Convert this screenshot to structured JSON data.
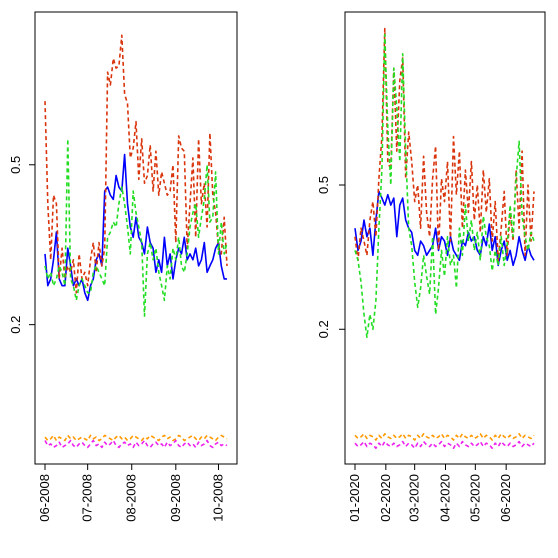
{
  "chart_data": [
    {
      "type": "line",
      "title": "",
      "xlabel": "",
      "ylabel": "",
      "y_scale": "log",
      "ylim": [
        0.09,
        1.2
      ],
      "y_ticks": [
        0.2,
        0.5
      ],
      "y_tick_labels": [
        "0.2",
        "0.5"
      ],
      "x_ticks": [
        "2008-06-01",
        "2008-07-01",
        "2008-08-01",
        "2008-09-01",
        "2008-10-01"
      ],
      "x_tick_labels": [
        "06-2008",
        "07-2008",
        "08-2008",
        "09-2008",
        "10-2008"
      ],
      "xlim": [
        "2008-06-01",
        "2008-10-07"
      ],
      "grid": false,
      "legend": "none",
      "x": [
        "2008-06-01",
        "2008-06-03",
        "2008-06-05",
        "2008-06-07",
        "2008-06-09",
        "2008-06-11",
        "2008-06-13",
        "2008-06-15",
        "2008-06-17",
        "2008-06-19",
        "2008-06-21",
        "2008-06-23",
        "2008-06-25",
        "2008-06-27",
        "2008-06-29",
        "2008-07-01",
        "2008-07-03",
        "2008-07-05",
        "2008-07-07",
        "2008-07-09",
        "2008-07-11",
        "2008-07-13",
        "2008-07-15",
        "2008-07-17",
        "2008-07-19",
        "2008-07-21",
        "2008-07-23",
        "2008-07-25",
        "2008-07-27",
        "2008-07-29",
        "2008-07-31",
        "2008-08-02",
        "2008-08-04",
        "2008-08-06",
        "2008-08-08",
        "2008-08-10",
        "2008-08-12",
        "2008-08-14",
        "2008-08-16",
        "2008-08-18",
        "2008-08-20",
        "2008-08-22",
        "2008-08-24",
        "2008-08-26",
        "2008-08-28",
        "2008-08-30",
        "2008-09-01",
        "2008-09-03",
        "2008-09-05",
        "2008-09-07",
        "2008-09-09",
        "2008-09-11",
        "2008-09-13",
        "2008-09-15",
        "2008-09-17",
        "2008-09-19",
        "2008-09-21",
        "2008-09-23",
        "2008-09-25",
        "2008-09-27",
        "2008-09-29",
        "2008-10-01",
        "2008-10-03",
        "2008-10-05",
        "2008-10-07"
      ],
      "series": [
        {
          "color": "#0000ff",
          "dash": "solid",
          "values": [
            0.3,
            0.25,
            0.26,
            0.29,
            0.34,
            0.26,
            0.25,
            0.25,
            0.31,
            0.28,
            0.25,
            0.26,
            0.25,
            0.26,
            0.24,
            0.23,
            0.25,
            0.26,
            0.29,
            0.3,
            0.28,
            0.43,
            0.44,
            0.42,
            0.41,
            0.47,
            0.44,
            0.43,
            0.53,
            0.4,
            0.35,
            0.33,
            0.37,
            0.33,
            0.32,
            0.3,
            0.35,
            0.32,
            0.31,
            0.27,
            0.29,
            0.27,
            0.33,
            0.28,
            0.3,
            0.26,
            0.29,
            0.31,
            0.3,
            0.33,
            0.29,
            0.3,
            0.29,
            0.31,
            0.28,
            0.29,
            0.32,
            0.27,
            0.28,
            0.29,
            0.31,
            0.32,
            0.28,
            0.26,
            0.26
          ]
        },
        {
          "color": "#d9340b",
          "dash": "dashed",
          "values": [
            0.72,
            0.4,
            0.29,
            0.42,
            0.4,
            0.26,
            0.31,
            0.26,
            0.28,
            0.27,
            0.29,
            0.24,
            0.3,
            0.26,
            0.27,
            0.25,
            0.29,
            0.32,
            0.27,
            0.32,
            0.28,
            0.31,
            0.85,
            0.79,
            0.92,
            0.87,
            0.88,
            1.05,
            0.75,
            0.71,
            0.52,
            0.55,
            0.64,
            0.46,
            0.58,
            0.45,
            0.47,
            0.56,
            0.43,
            0.54,
            0.42,
            0.48,
            0.45,
            0.42,
            0.43,
            0.5,
            0.32,
            0.59,
            0.55,
            0.54,
            0.31,
            0.4,
            0.52,
            0.33,
            0.58,
            0.4,
            0.45,
            0.35,
            0.6,
            0.42,
            0.38,
            0.31,
            0.3,
            0.37,
            0.28
          ]
        },
        {
          "color": "#22dd22",
          "dash": "dashed",
          "values": [
            0.28,
            0.26,
            0.27,
            0.25,
            0.26,
            0.28,
            0.27,
            0.25,
            0.58,
            0.26,
            0.25,
            0.23,
            0.25,
            0.26,
            0.25,
            0.24,
            0.24,
            0.27,
            0.28,
            0.27,
            0.26,
            0.25,
            0.33,
            0.34,
            0.36,
            0.35,
            0.4,
            0.44,
            0.4,
            0.35,
            0.3,
            0.43,
            0.38,
            0.35,
            0.32,
            0.21,
            0.3,
            0.32,
            0.29,
            0.31,
            0.27,
            0.25,
            0.23,
            0.28,
            0.26,
            0.31,
            0.29,
            0.33,
            0.28,
            0.27,
            0.3,
            0.35,
            0.38,
            0.4,
            0.33,
            0.37,
            0.41,
            0.5,
            0.36,
            0.37,
            0.48,
            0.3,
            0.36,
            0.3,
            0.32
          ]
        },
        {
          "color": "#ff9900",
          "dash": "dashed",
          "values": [
            0.105,
            0.103,
            0.104,
            0.106,
            0.103,
            0.105,
            0.104,
            0.103,
            0.106,
            0.104,
            0.105,
            0.103,
            0.104,
            0.105,
            0.104,
            0.103,
            0.106,
            0.104,
            0.105,
            0.103,
            0.104,
            0.106,
            0.105,
            0.104,
            0.103,
            0.105,
            0.106,
            0.104,
            0.105,
            0.103,
            0.104,
            0.106,
            0.105,
            0.104,
            0.103,
            0.105,
            0.104,
            0.106,
            0.105,
            0.104,
            0.103,
            0.105,
            0.106,
            0.104,
            0.105,
            0.103,
            0.104,
            0.106,
            0.105,
            0.103,
            0.104,
            0.105,
            0.106,
            0.104,
            0.103,
            0.105,
            0.104,
            0.106,
            0.105,
            0.104,
            0.103,
            0.105,
            0.106,
            0.105,
            0.104
          ]
        },
        {
          "color": "#ee22ee",
          "dash": "dashed",
          "values": [
            0.103,
            0.1,
            0.101,
            0.099,
            0.1,
            0.102,
            0.099,
            0.1,
            0.101,
            0.103,
            0.1,
            0.099,
            0.101,
            0.102,
            0.1,
            0.099,
            0.101,
            0.103,
            0.1,
            0.101,
            0.099,
            0.102,
            0.1,
            0.101,
            0.103,
            0.1,
            0.099,
            0.101,
            0.102,
            0.1,
            0.101,
            0.099,
            0.102,
            0.1,
            0.101,
            0.103,
            0.1,
            0.099,
            0.101,
            0.102,
            0.1,
            0.101,
            0.099,
            0.102,
            0.1,
            0.101,
            0.103,
            0.1,
            0.099,
            0.101,
            0.102,
            0.1,
            0.101,
            0.099,
            0.102,
            0.1,
            0.101,
            0.103,
            0.1,
            0.099,
            0.101,
            0.102,
            0.1,
            0.101,
            0.1
          ]
        }
      ]
    },
    {
      "type": "line",
      "title": "",
      "xlabel": "",
      "ylabel": "",
      "y_scale": "log",
      "ylim": [
        0.085,
        1.5
      ],
      "y_ticks": [
        0.2,
        0.5
      ],
      "y_tick_labels": [
        "0.2",
        "0.5"
      ],
      "x_ticks": [
        "2020-01-01",
        "2020-02-01",
        "2020-03-01",
        "2020-04-01",
        "2020-05-01",
        "2020-06-01"
      ],
      "x_tick_labels": [
        "01-2020",
        "02-2020",
        "03-2020",
        "04-2020",
        "05-2020",
        "06-2020"
      ],
      "xlim": [
        "2020-01-01",
        "2020-06-30"
      ],
      "grid": false,
      "legend": "none",
      "x": [
        "2020-01-01",
        "2020-01-04",
        "2020-01-07",
        "2020-01-10",
        "2020-01-13",
        "2020-01-16",
        "2020-01-19",
        "2020-01-22",
        "2020-01-25",
        "2020-01-28",
        "2020-01-31",
        "2020-02-03",
        "2020-02-06",
        "2020-02-09",
        "2020-02-12",
        "2020-02-15",
        "2020-02-18",
        "2020-02-21",
        "2020-02-24",
        "2020-02-27",
        "2020-03-01",
        "2020-03-04",
        "2020-03-07",
        "2020-03-10",
        "2020-03-13",
        "2020-03-16",
        "2020-03-19",
        "2020-03-22",
        "2020-03-25",
        "2020-03-28",
        "2020-03-31",
        "2020-04-03",
        "2020-04-06",
        "2020-04-09",
        "2020-04-12",
        "2020-04-15",
        "2020-04-18",
        "2020-04-21",
        "2020-04-24",
        "2020-04-27",
        "2020-04-30",
        "2020-05-03",
        "2020-05-06",
        "2020-05-09",
        "2020-05-12",
        "2020-05-15",
        "2020-05-18",
        "2020-05-21",
        "2020-05-24",
        "2020-05-27",
        "2020-05-30",
        "2020-06-02",
        "2020-06-05",
        "2020-06-08",
        "2020-06-11",
        "2020-06-14",
        "2020-06-17",
        "2020-06-20",
        "2020-06-23",
        "2020-06-26",
        "2020-06-29"
      ],
      "series": [
        {
          "color": "#0000ff",
          "dash": "solid",
          "values": [
            0.38,
            0.33,
            0.35,
            0.4,
            0.36,
            0.38,
            0.32,
            0.4,
            0.48,
            0.46,
            0.44,
            0.47,
            0.44,
            0.46,
            0.36,
            0.44,
            0.46,
            0.4,
            0.38,
            0.37,
            0.33,
            0.32,
            0.35,
            0.34,
            0.32,
            0.33,
            0.34,
            0.38,
            0.33,
            0.36,
            0.35,
            0.32,
            0.36,
            0.33,
            0.32,
            0.31,
            0.35,
            0.34,
            0.37,
            0.35,
            0.36,
            0.33,
            0.32,
            0.36,
            0.34,
            0.39,
            0.33,
            0.36,
            0.3,
            0.33,
            0.35,
            0.31,
            0.33,
            0.3,
            0.32,
            0.36,
            0.33,
            0.31,
            0.34,
            0.32,
            0.31
          ]
        },
        {
          "color": "#d9340b",
          "dash": "dashed",
          "values": [
            0.36,
            0.31,
            0.38,
            0.35,
            0.32,
            0.4,
            0.45,
            0.36,
            0.52,
            0.68,
            1.35,
            0.58,
            0.55,
            1.05,
            0.62,
            0.97,
            1.12,
            0.52,
            0.7,
            0.58,
            0.45,
            0.5,
            0.38,
            0.6,
            0.42,
            0.36,
            0.52,
            0.64,
            0.33,
            0.52,
            0.45,
            0.58,
            0.35,
            0.68,
            0.47,
            0.62,
            0.38,
            0.55,
            0.42,
            0.58,
            0.4,
            0.5,
            0.37,
            0.55,
            0.42,
            0.52,
            0.35,
            0.45,
            0.31,
            0.38,
            0.48,
            0.32,
            0.42,
            0.35,
            0.55,
            0.38,
            0.62,
            0.32,
            0.5,
            0.35,
            0.48
          ]
        },
        {
          "color": "#22dd22",
          "dash": "dashed",
          "values": [
            0.33,
            0.31,
            0.27,
            0.22,
            0.19,
            0.22,
            0.2,
            0.24,
            0.38,
            0.55,
            1.3,
            0.72,
            0.5,
            1.05,
            0.82,
            0.58,
            1.15,
            0.62,
            0.38,
            0.34,
            0.27,
            0.23,
            0.26,
            0.32,
            0.28,
            0.25,
            0.36,
            0.22,
            0.26,
            0.33,
            0.28,
            0.36,
            0.3,
            0.32,
            0.26,
            0.38,
            0.32,
            0.44,
            0.35,
            0.4,
            0.33,
            0.37,
            0.31,
            0.41,
            0.36,
            0.34,
            0.29,
            0.33,
            0.3,
            0.36,
            0.3,
            0.34,
            0.44,
            0.36,
            0.52,
            0.66,
            0.41,
            0.36,
            0.33,
            0.37,
            0.35
          ]
        },
        {
          "color": "#ff9900",
          "dash": "dashed",
          "values": [
            0.102,
            0.1,
            0.101,
            0.103,
            0.1,
            0.102,
            0.101,
            0.099,
            0.102,
            0.1,
            0.103,
            0.101,
            0.1,
            0.102,
            0.1,
            0.101,
            0.103,
            0.1,
            0.102,
            0.101,
            0.099,
            0.102,
            0.1,
            0.103,
            0.101,
            0.1,
            0.102,
            0.1,
            0.101,
            0.103,
            0.1,
            0.102,
            0.101,
            0.099,
            0.102,
            0.1,
            0.103,
            0.101,
            0.1,
            0.102,
            0.1,
            0.101,
            0.103,
            0.1,
            0.102,
            0.101,
            0.099,
            0.102,
            0.1,
            0.103,
            0.101,
            0.1,
            0.102,
            0.1,
            0.101,
            0.103,
            0.1,
            0.102,
            0.101,
            0.1,
            0.102
          ]
        },
        {
          "color": "#ee22ee",
          "dash": "dashed",
          "values": [
            0.097,
            0.095,
            0.096,
            0.098,
            0.095,
            0.097,
            0.096,
            0.094,
            0.097,
            0.095,
            0.098,
            0.096,
            0.095,
            0.097,
            0.095,
            0.096,
            0.098,
            0.095,
            0.097,
            0.096,
            0.094,
            0.097,
            0.095,
            0.098,
            0.096,
            0.095,
            0.097,
            0.095,
            0.096,
            0.098,
            0.095,
            0.097,
            0.096,
            0.094,
            0.097,
            0.095,
            0.098,
            0.096,
            0.095,
            0.097,
            0.095,
            0.096,
            0.098,
            0.095,
            0.097,
            0.096,
            0.094,
            0.097,
            0.095,
            0.098,
            0.096,
            0.095,
            0.097,
            0.095,
            0.096,
            0.098,
            0.095,
            0.097,
            0.096,
            0.095,
            0.097
          ]
        }
      ]
    }
  ]
}
